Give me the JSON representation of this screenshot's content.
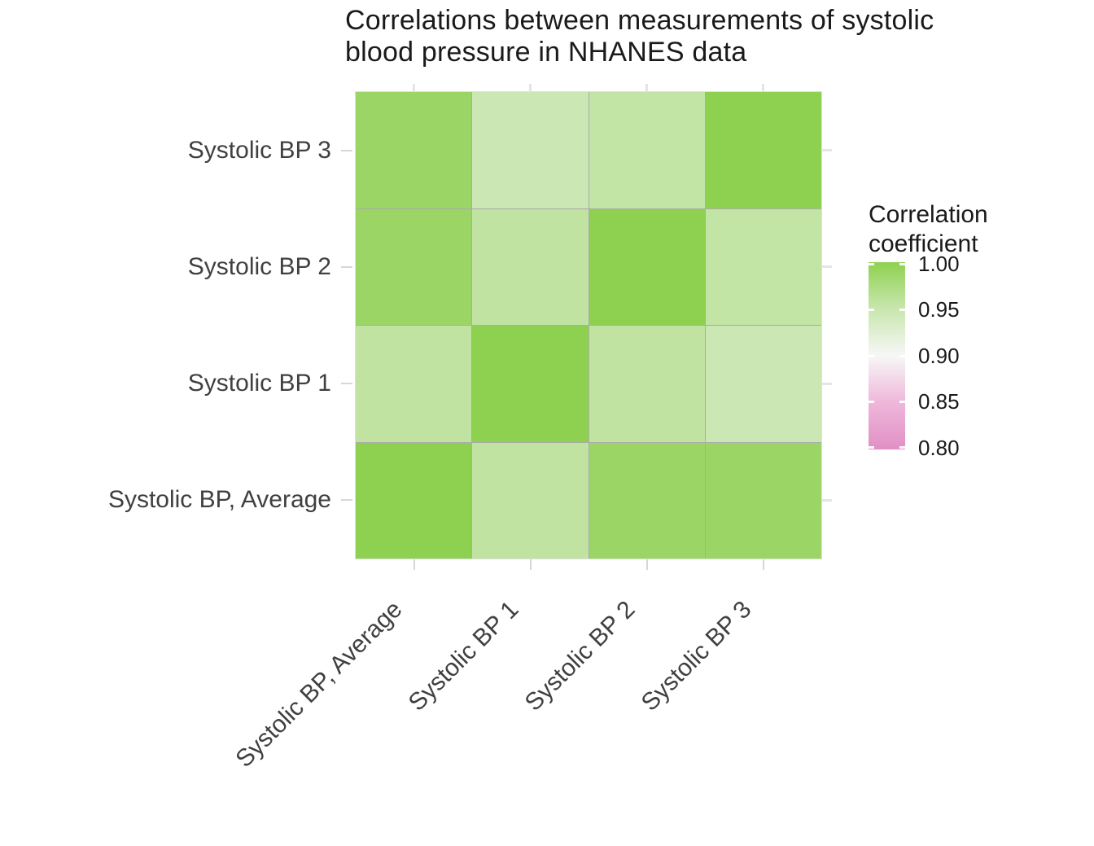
{
  "title": "Correlations between measurements of systolic\nblood pressure in NHANES data",
  "chart_data": {
    "type": "heatmap",
    "title": "Correlations between measurements of systolic blood pressure in NHANES data",
    "x_categories": [
      "Systolic BP, Average",
      "Systolic BP 1",
      "Systolic BP 2",
      "Systolic BP 3"
    ],
    "y_categories_top_to_bottom": [
      "Systolic BP 3",
      "Systolic BP 2",
      "Systolic BP 1",
      "Systolic BP, Average"
    ],
    "rows": [
      {
        "label": "Systolic BP 3",
        "values": [
          0.99,
          0.94,
          0.95,
          1.0
        ],
        "colors": [
          "#9bd565",
          "#cbe7b3",
          "#c2e4a4",
          "#8ed151"
        ]
      },
      {
        "label": "Systolic BP 2",
        "values": [
          0.99,
          0.95,
          1.0,
          0.95
        ],
        "colors": [
          "#9bd565",
          "#c0e3a2",
          "#8ed151",
          "#c2e4a4"
        ]
      },
      {
        "label": "Systolic BP 1",
        "values": [
          0.95,
          1.0,
          0.95,
          0.94
        ],
        "colors": [
          "#c0e3a2",
          "#8ed151",
          "#c0e3a2",
          "#cbe7b3"
        ]
      },
      {
        "label": "Systolic BP, Average",
        "values": [
          1.0,
          0.95,
          0.99,
          0.99
        ],
        "colors": [
          "#8ed151",
          "#c0e3a2",
          "#9bd565",
          "#9bd565"
        ]
      }
    ],
    "legend": {
      "title": "Correlation\ncoefficient",
      "tick_labels": [
        "1.00",
        "0.95",
        "0.90",
        "0.85",
        "0.80"
      ],
      "range": [
        0.8,
        1.0
      ],
      "gradient_stops": [
        "#8ed151",
        "#c9e6ae",
        "#f7f7f7",
        "#eeb7da",
        "#e18fc5"
      ],
      "position": "right"
    },
    "style": {
      "grid_line_color": "#ababab",
      "axis_text_color": "#404040",
      "title_text_color": "#1a1a1a",
      "axis_tick_color": "#d7d7d7",
      "background": "#ffffff",
      "x_label_angle_deg": 45,
      "grid_on": false,
      "legend_position": "right"
    }
  }
}
